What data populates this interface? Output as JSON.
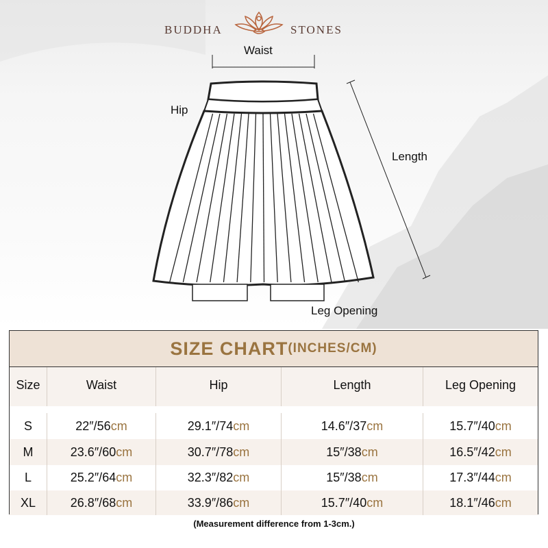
{
  "brand": {
    "left": "BUDDHA",
    "right": "STONES",
    "logo_icon": "lotus-meditation-icon",
    "color": "#5a3c34"
  },
  "diagram": {
    "waist": "Waist",
    "hip": "Hip",
    "length": "Length",
    "leg_opening": "Leg Opening"
  },
  "table": {
    "title": "SIZE CHART",
    "title_units": "(INCHES/CM)",
    "title_color": "#9a7440",
    "headers": [
      "Size",
      "Waist",
      "Hip",
      "Length",
      "Leg Opening"
    ],
    "unit_suffix": "cm",
    "rows": [
      {
        "size": "S",
        "waist": "22″/56",
        "hip": "29.1″/74",
        "length": "14.6″/37",
        "leg": "15.7″/40"
      },
      {
        "size": "M",
        "waist": "23.6″/60",
        "hip": "30.7″/78",
        "length": "15″/38",
        "leg": "16.5″/42"
      },
      {
        "size": "L",
        "waist": "25.2″/64",
        "hip": "32.3″/82",
        "length": "15″/38",
        "leg": "17.3″/44"
      },
      {
        "size": "XL",
        "waist": "26.8″/68",
        "hip": "33.9″/86",
        "length": "15.7″/40",
        "leg": "18.1″/46"
      }
    ],
    "note": "(Measurement difference from 1-3cm.)"
  }
}
